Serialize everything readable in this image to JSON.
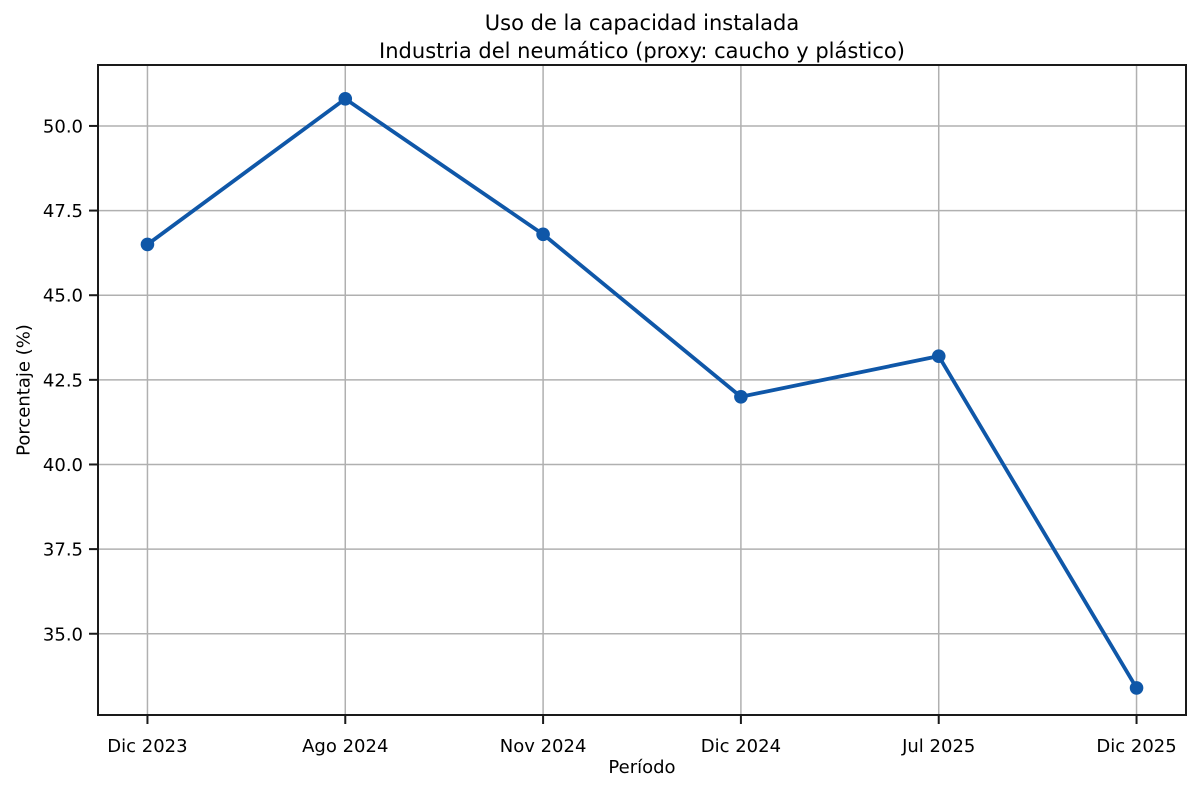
{
  "chart_data": {
    "type": "line",
    "title": "Uso de la capacidad instalada",
    "subtitle": "Industria del neumático (proxy: caucho y plástico)",
    "xlabel": "Período",
    "ylabel": "Porcentaje (%)",
    "categories": [
      "Dic 2023",
      "Ago 2024",
      "Nov 2024",
      "Dic 2024",
      "Jul 2025",
      "Dic 2025"
    ],
    "values": [
      46.5,
      50.8,
      46.8,
      42.0,
      43.2,
      33.4
    ],
    "y_ticks": [
      "35.0",
      "37.5",
      "40.0",
      "42.5",
      "45.0",
      "47.5",
      "50.0"
    ],
    "ylim": [
      32.6,
      51.8
    ],
    "xlim": [
      -0.25,
      5.25
    ],
    "grid": true,
    "legend": false,
    "marker": "circle",
    "colors": {
      "line": "#0f57a8",
      "grid": "#b0b0b0",
      "spine": "#1a1a1a",
      "text": "#000000"
    }
  }
}
